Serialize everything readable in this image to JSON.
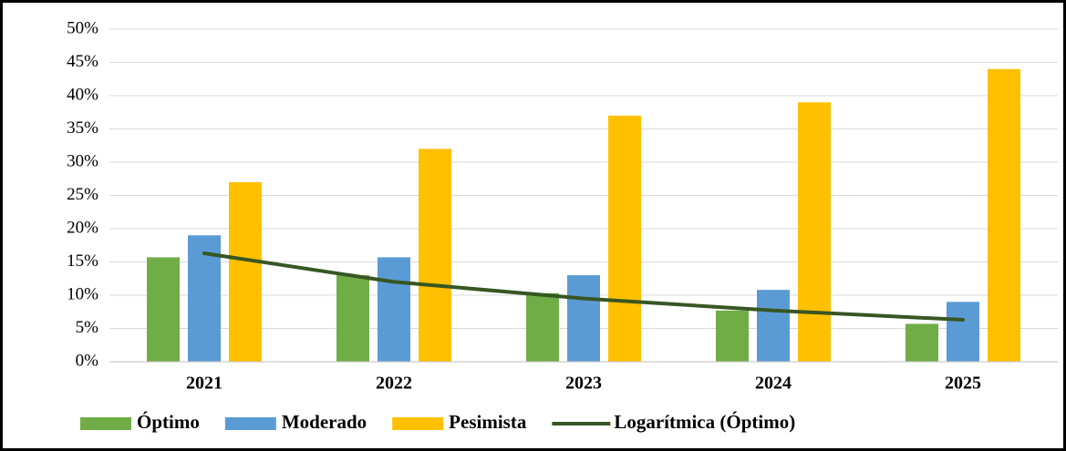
{
  "chart_data": {
    "type": "bar",
    "categories": [
      "2021",
      "2022",
      "2023",
      "2024",
      "2025"
    ],
    "series": [
      {
        "name": "Óptimo",
        "color": "#70ad47",
        "values": [
          15.7,
          13,
          10.3,
          7.7,
          5.7
        ]
      },
      {
        "name": "Moderado",
        "color": "#5b9bd5",
        "values": [
          19,
          15.7,
          13,
          10.8,
          9
        ]
      },
      {
        "name": "Pesimista",
        "color": "#ffc000",
        "values": [
          27,
          32,
          37,
          39,
          44
        ]
      },
      {
        "name": "Logarítmica (Óptimo)",
        "color": "#375623",
        "type": "line",
        "values": [
          16.3,
          12.0,
          9.5,
          7.7,
          6.3
        ]
      }
    ],
    "ylim": [
      0,
      50
    ],
    "yticks": [
      {
        "value": 0,
        "label": "0%"
      },
      {
        "value": 5,
        "label": "5%"
      },
      {
        "value": 10,
        "label": "10%"
      },
      {
        "value": 15,
        "label": "15%"
      },
      {
        "value": 20,
        "label": "20%"
      },
      {
        "value": 25,
        "label": "25%"
      },
      {
        "value": 30,
        "label": "30%"
      },
      {
        "value": 35,
        "label": "35%"
      },
      {
        "value": 40,
        "label": "40%"
      },
      {
        "value": 45,
        "label": "45%"
      },
      {
        "value": 50,
        "label": "50%"
      }
    ],
    "grid": true,
    "legend": "bottom"
  }
}
